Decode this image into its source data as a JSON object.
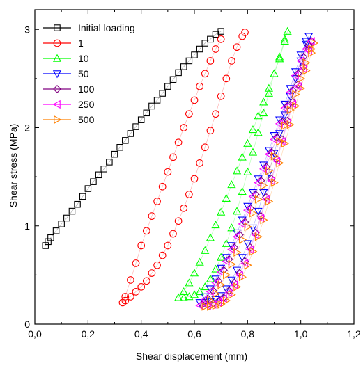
{
  "chart_data": {
    "type": "scatter",
    "title": "",
    "xlabel": "Shear displacement (mm)",
    "ylabel": "Shear stress (MPa)",
    "xlim": [
      0.0,
      1.2
    ],
    "ylim": [
      0,
      3.2
    ],
    "x_ticks": [
      "0,0",
      "0,2",
      "0,4",
      "0,6",
      "0,8",
      "1,0",
      "1,2"
    ],
    "y_ticks": [
      "0",
      "1",
      "2",
      "3"
    ],
    "grid": false,
    "legend_position": "top-left",
    "series": [
      {
        "name": "Initial loading",
        "color": "#000000",
        "marker": "square",
        "x": [
          0.04,
          0.05,
          0.06,
          0.08,
          0.1,
          0.12,
          0.14,
          0.16,
          0.18,
          0.2,
          0.22,
          0.24,
          0.26,
          0.28,
          0.3,
          0.32,
          0.34,
          0.36,
          0.38,
          0.4,
          0.42,
          0.44,
          0.46,
          0.48,
          0.5,
          0.52,
          0.54,
          0.56,
          0.58,
          0.6,
          0.62,
          0.64,
          0.66,
          0.68,
          0.7
        ],
        "y": [
          0.8,
          0.84,
          0.88,
          0.95,
          1.02,
          1.08,
          1.15,
          1.22,
          1.3,
          1.38,
          1.45,
          1.52,
          1.58,
          1.65,
          1.73,
          1.8,
          1.87,
          1.94,
          2.01,
          2.08,
          2.15,
          2.22,
          2.28,
          2.35,
          2.42,
          2.49,
          2.56,
          2.62,
          2.68,
          2.74,
          2.8,
          2.86,
          2.9,
          2.95,
          2.98
        ]
      },
      {
        "name": "1",
        "color": "#ff0000",
        "marker": "circle",
        "x": [
          0.7,
          0.68,
          0.66,
          0.64,
          0.62,
          0.6,
          0.58,
          0.56,
          0.54,
          0.52,
          0.5,
          0.48,
          0.46,
          0.44,
          0.42,
          0.4,
          0.38,
          0.36,
          0.34,
          0.33,
          0.34,
          0.36,
          0.38,
          0.4,
          0.42,
          0.44,
          0.46,
          0.48,
          0.5,
          0.52,
          0.54,
          0.56,
          0.58,
          0.6,
          0.62,
          0.64,
          0.66,
          0.68,
          0.7,
          0.72,
          0.74,
          0.76,
          0.78,
          0.79
        ],
        "y": [
          2.9,
          2.8,
          2.68,
          2.55,
          2.42,
          2.28,
          2.14,
          2.0,
          1.85,
          1.7,
          1.55,
          1.4,
          1.25,
          1.1,
          0.95,
          0.8,
          0.62,
          0.45,
          0.28,
          0.22,
          0.24,
          0.28,
          0.33,
          0.38,
          0.44,
          0.52,
          0.6,
          0.7,
          0.8,
          0.92,
          1.05,
          1.18,
          1.32,
          1.48,
          1.64,
          1.8,
          1.97,
          2.14,
          2.32,
          2.5,
          2.68,
          2.82,
          2.93,
          2.97
        ]
      },
      {
        "name": "10",
        "color": "#00ff00",
        "marker": "triangle-up",
        "x": [
          0.54,
          0.56,
          0.58,
          0.6,
          0.62,
          0.64,
          0.66,
          0.68,
          0.7,
          0.72,
          0.74,
          0.76,
          0.78,
          0.8,
          0.82,
          0.84,
          0.86,
          0.88,
          0.9,
          0.92,
          0.94,
          0.95,
          0.94,
          0.92,
          0.9,
          0.88,
          0.86,
          0.84,
          0.82,
          0.8,
          0.78,
          0.76,
          0.74,
          0.72,
          0.7,
          0.68,
          0.66,
          0.64,
          0.62,
          0.6,
          0.58,
          0.56
        ],
        "y": [
          0.27,
          0.33,
          0.42,
          0.52,
          0.63,
          0.75,
          0.88,
          1.01,
          1.14,
          1.28,
          1.42,
          1.56,
          1.7,
          1.84,
          1.98,
          2.12,
          2.26,
          2.4,
          2.55,
          2.7,
          2.88,
          2.98,
          2.9,
          2.72,
          2.55,
          2.35,
          2.15,
          1.95,
          1.75,
          1.55,
          1.35,
          1.15,
          0.98,
          0.82,
          0.68,
          0.56,
          0.46,
          0.38,
          0.33,
          0.3,
          0.28,
          0.27
        ]
      },
      {
        "name": "50",
        "color": "#0000ff",
        "marker": "triangle-down",
        "x": [
          0.62,
          0.64,
          0.66,
          0.68,
          0.7,
          0.72,
          0.74,
          0.76,
          0.78,
          0.8,
          0.82,
          0.84,
          0.86,
          0.88,
          0.9,
          0.92,
          0.94,
          0.96,
          0.98,
          1.0,
          1.02,
          1.03,
          1.02,
          1.0,
          0.98,
          0.96,
          0.94,
          0.92,
          0.9,
          0.88,
          0.86,
          0.84,
          0.82,
          0.8,
          0.78,
          0.76,
          0.74,
          0.72,
          0.7,
          0.68,
          0.66,
          0.64
        ],
        "y": [
          0.22,
          0.28,
          0.36,
          0.46,
          0.57,
          0.68,
          0.8,
          0.93,
          1.06,
          1.2,
          1.34,
          1.48,
          1.62,
          1.77,
          1.92,
          2.08,
          2.24,
          2.4,
          2.57,
          2.74,
          2.88,
          2.93,
          2.85,
          2.68,
          2.5,
          2.32,
          2.13,
          1.94,
          1.74,
          1.54,
          1.34,
          1.15,
          0.98,
          0.82,
          0.68,
          0.55,
          0.45,
          0.36,
          0.29,
          0.25,
          0.23,
          0.22
        ]
      },
      {
        "name": "100",
        "color": "#800080",
        "marker": "diamond",
        "x": [
          0.63,
          0.65,
          0.67,
          0.69,
          0.71,
          0.73,
          0.75,
          0.77,
          0.79,
          0.81,
          0.83,
          0.85,
          0.87,
          0.89,
          0.91,
          0.93,
          0.95,
          0.97,
          0.99,
          1.01,
          1.03,
          1.04,
          1.03,
          1.01,
          0.99,
          0.97,
          0.95,
          0.93,
          0.91,
          0.89,
          0.87,
          0.85,
          0.83,
          0.81,
          0.79,
          0.77,
          0.75,
          0.73,
          0.71,
          0.69,
          0.67,
          0.65
        ],
        "y": [
          0.2,
          0.26,
          0.34,
          0.44,
          0.55,
          0.66,
          0.78,
          0.91,
          1.04,
          1.18,
          1.32,
          1.46,
          1.6,
          1.75,
          1.9,
          2.06,
          2.22,
          2.38,
          2.55,
          2.72,
          2.84,
          2.88,
          2.8,
          2.62,
          2.44,
          2.26,
          2.07,
          1.88,
          1.68,
          1.48,
          1.29,
          1.1,
          0.93,
          0.78,
          0.64,
          0.52,
          0.42,
          0.34,
          0.27,
          0.23,
          0.21,
          0.2
        ]
      },
      {
        "name": "250",
        "color": "#ff00ff",
        "marker": "triangle-left",
        "x": [
          0.62,
          0.64,
          0.66,
          0.68,
          0.7,
          0.72,
          0.74,
          0.76,
          0.78,
          0.8,
          0.82,
          0.84,
          0.86,
          0.88,
          0.9,
          0.92,
          0.94,
          0.96,
          0.98,
          1.0,
          1.02,
          1.04,
          1.03,
          1.01,
          0.99,
          0.97,
          0.95,
          0.93,
          0.91,
          0.89,
          0.87,
          0.85,
          0.83,
          0.81,
          0.79,
          0.77,
          0.75,
          0.73,
          0.71,
          0.69,
          0.67,
          0.65
        ],
        "y": [
          0.19,
          0.25,
          0.33,
          0.42,
          0.53,
          0.64,
          0.76,
          0.89,
          1.02,
          1.16,
          1.3,
          1.44,
          1.58,
          1.73,
          1.88,
          2.04,
          2.2,
          2.36,
          2.53,
          2.68,
          2.8,
          2.88,
          2.78,
          2.6,
          2.42,
          2.24,
          2.05,
          1.86,
          1.66,
          1.46,
          1.27,
          1.08,
          0.91,
          0.76,
          0.62,
          0.5,
          0.4,
          0.32,
          0.26,
          0.22,
          0.2,
          0.19
        ]
      },
      {
        "name": "500",
        "color": "#ff8000",
        "marker": "triangle-right",
        "x": [
          0.64,
          0.66,
          0.68,
          0.7,
          0.72,
          0.74,
          0.76,
          0.78,
          0.8,
          0.82,
          0.84,
          0.86,
          0.88,
          0.9,
          0.92,
          0.94,
          0.96,
          0.98,
          1.0,
          1.02,
          1.04,
          1.05,
          1.04,
          1.02,
          1.0,
          0.98,
          0.96,
          0.94,
          0.92,
          0.9,
          0.88,
          0.86,
          0.84,
          0.82,
          0.8,
          0.78,
          0.76,
          0.74,
          0.72,
          0.7,
          0.68,
          0.66
        ],
        "y": [
          0.18,
          0.24,
          0.31,
          0.4,
          0.5,
          0.61,
          0.73,
          0.86,
          0.99,
          1.13,
          1.27,
          1.41,
          1.56,
          1.71,
          1.86,
          2.02,
          2.18,
          2.34,
          2.5,
          2.66,
          2.8,
          2.86,
          2.76,
          2.58,
          2.4,
          2.22,
          2.03,
          1.84,
          1.64,
          1.44,
          1.25,
          1.06,
          0.89,
          0.74,
          0.6,
          0.48,
          0.38,
          0.3,
          0.24,
          0.2,
          0.19,
          0.18
        ]
      }
    ]
  }
}
